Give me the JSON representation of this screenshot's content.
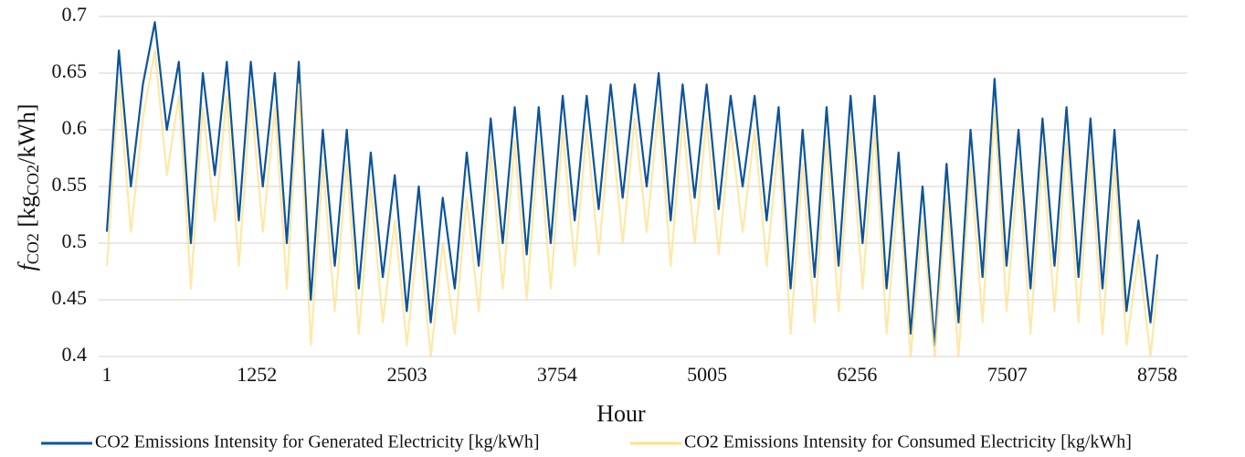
{
  "chart_data": {
    "type": "line",
    "xlabel": "Hour",
    "ylabel": [
      "f",
      "CO2",
      " [kg",
      "CO2",
      "/kWh]"
    ],
    "x": [
      1,
      101,
      201,
      301,
      401,
      501,
      601,
      701,
      801,
      901,
      1001,
      1101,
      1201,
      1301,
      1401,
      1501,
      1601,
      1701,
      1801,
      1901,
      2001,
      2101,
      2201,
      2301,
      2401,
      2501,
      2601,
      2701,
      2801,
      2901,
      3001,
      3101,
      3201,
      3301,
      3401,
      3501,
      3601,
      3701,
      3801,
      3901,
      4001,
      4101,
      4201,
      4301,
      4401,
      4501,
      4601,
      4701,
      4801,
      4901,
      5001,
      5101,
      5201,
      5301,
      5401,
      5501,
      5601,
      5701,
      5801,
      5901,
      6001,
      6101,
      6201,
      6301,
      6401,
      6501,
      6601,
      6701,
      6801,
      6901,
      7001,
      7101,
      7201,
      7301,
      7401,
      7501,
      7601,
      7701,
      7801,
      7901,
      8001,
      8101,
      8201,
      8301,
      8401,
      8501,
      8601,
      8701,
      8758
    ],
    "series": [
      {
        "name": "CO2 Emissions Intensity for Generated Electricity [kg/kWh]",
        "color": "#0b549c",
        "values": [
          0.51,
          0.67,
          0.55,
          0.64,
          0.695,
          0.6,
          0.66,
          0.5,
          0.65,
          0.56,
          0.66,
          0.52,
          0.66,
          0.55,
          0.65,
          0.5,
          0.66,
          0.45,
          0.6,
          0.48,
          0.6,
          0.46,
          0.58,
          0.47,
          0.56,
          0.44,
          0.55,
          0.43,
          0.54,
          0.46,
          0.58,
          0.48,
          0.61,
          0.5,
          0.62,
          0.49,
          0.62,
          0.5,
          0.63,
          0.52,
          0.63,
          0.53,
          0.64,
          0.54,
          0.64,
          0.55,
          0.65,
          0.52,
          0.64,
          0.54,
          0.64,
          0.53,
          0.63,
          0.55,
          0.63,
          0.52,
          0.62,
          0.46,
          0.6,
          0.47,
          0.62,
          0.48,
          0.63,
          0.5,
          0.63,
          0.46,
          0.58,
          0.42,
          0.55,
          0.41,
          0.57,
          0.43,
          0.6,
          0.47,
          0.645,
          0.48,
          0.6,
          0.46,
          0.61,
          0.48,
          0.62,
          0.47,
          0.61,
          0.46,
          0.6,
          0.44,
          0.52,
          0.43,
          0.49
        ]
      },
      {
        "name": "CO2 Emissions Intensity for Consumed Electricity  [kg/kWh]",
        "color": "#ffe08a",
        "values": [
          0.48,
          0.64,
          0.51,
          0.61,
          0.67,
          0.56,
          0.63,
          0.46,
          0.62,
          0.52,
          0.63,
          0.48,
          0.63,
          0.51,
          0.62,
          0.46,
          0.64,
          0.41,
          0.57,
          0.44,
          0.57,
          0.42,
          0.55,
          0.43,
          0.52,
          0.41,
          0.51,
          0.4,
          0.5,
          0.42,
          0.54,
          0.44,
          0.58,
          0.46,
          0.59,
          0.45,
          0.59,
          0.46,
          0.6,
          0.48,
          0.6,
          0.49,
          0.61,
          0.5,
          0.61,
          0.51,
          0.62,
          0.48,
          0.61,
          0.5,
          0.61,
          0.49,
          0.6,
          0.51,
          0.6,
          0.48,
          0.59,
          0.42,
          0.57,
          0.43,
          0.59,
          0.44,
          0.6,
          0.46,
          0.6,
          0.42,
          0.55,
          0.4,
          0.52,
          0.4,
          0.54,
          0.4,
          0.57,
          0.43,
          0.62,
          0.44,
          0.57,
          0.42,
          0.58,
          0.44,
          0.59,
          0.43,
          0.58,
          0.42,
          0.57,
          0.41,
          0.49,
          0.4,
          0.46
        ]
      }
    ],
    "xlim": [
      1,
      8758
    ],
    "xticks": [
      1,
      1252,
      2503,
      3754,
      5005,
      6256,
      7507,
      8758
    ],
    "ylim": [
      0.4,
      0.7
    ],
    "yticks": [
      0.4,
      0.45,
      0.5,
      0.55,
      0.6,
      0.65,
      0.7
    ],
    "grid": true
  }
}
